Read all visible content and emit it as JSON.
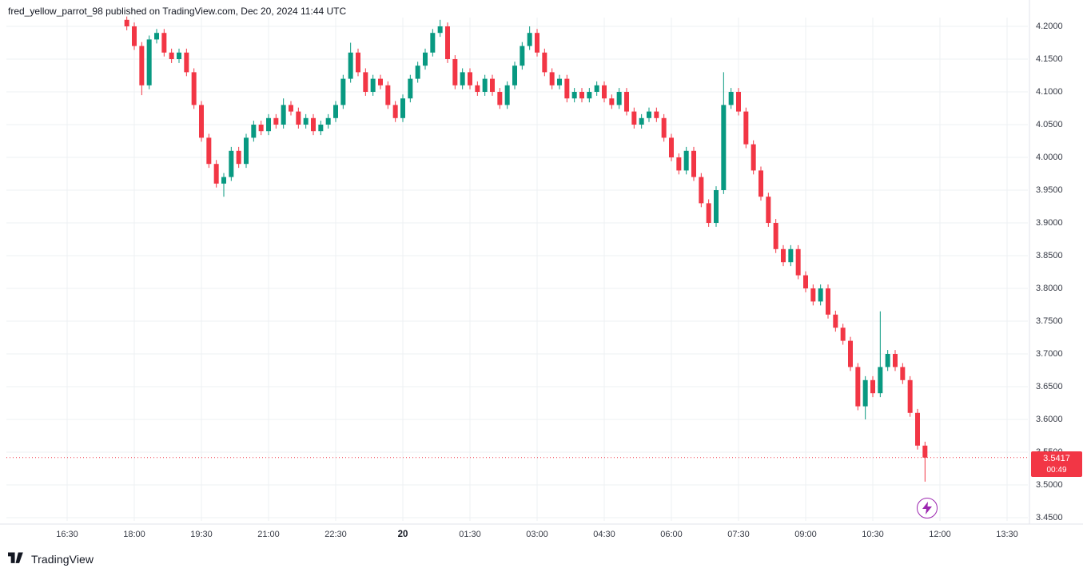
{
  "header": {
    "username": "fred_yellow_parrot_98",
    "suffix": " published on TradingView.com, Dec 20, 2024 11:44 UTC"
  },
  "footer": {
    "brand": "TradingView"
  },
  "price_label": {
    "price_text": "3.5417",
    "countdown_text": "00:49"
  },
  "colors": {
    "up": "#089981",
    "down": "#f23645",
    "grid": "#eef0f3",
    "axis_border": "#e0e3eb",
    "text": "#131722",
    "tick_text": "#363a45",
    "last_price": "#f23645",
    "marker_purple": "#9c27b0"
  },
  "chart_data": {
    "type": "candlestick",
    "timeframe_note": "intraday, Dec 19 evening to Dec 20 11:44 UTC",
    "y_range": [
      3.45,
      4.215
    ],
    "last_price": 3.5417,
    "countdown": "00:49",
    "y_ticks": [
      {
        "label": "4.2000",
        "value": 4.2
      },
      {
        "label": "4.1500",
        "value": 4.15
      },
      {
        "label": "4.1000",
        "value": 4.1
      },
      {
        "label": "4.0500",
        "value": 4.05
      },
      {
        "label": "4.0000",
        "value": 4.0
      },
      {
        "label": "3.9500",
        "value": 3.95
      },
      {
        "label": "3.9000",
        "value": 3.9
      },
      {
        "label": "3.8500",
        "value": 3.85
      },
      {
        "label": "3.8000",
        "value": 3.8
      },
      {
        "label": "3.7500",
        "value": 3.75
      },
      {
        "label": "3.7000",
        "value": 3.7
      },
      {
        "label": "3.6500",
        "value": 3.65
      },
      {
        "label": "3.6000",
        "value": 3.6
      },
      {
        "label": "3.5500",
        "value": 3.55
      },
      {
        "label": "3.5000",
        "value": 3.5
      },
      {
        "label": "3.4500",
        "value": 3.45
      }
    ],
    "x_ticks": [
      {
        "label": "16:30",
        "minutes": 0
      },
      {
        "label": "18:00",
        "minutes": 90
      },
      {
        "label": "19:30",
        "minutes": 180
      },
      {
        "label": "21:00",
        "minutes": 270
      },
      {
        "label": "22:30",
        "minutes": 360
      },
      {
        "label": "20",
        "minutes": 450,
        "bold": true
      },
      {
        "label": "01:30",
        "minutes": 540
      },
      {
        "label": "03:00",
        "minutes": 630
      },
      {
        "label": "04:30",
        "minutes": 720
      },
      {
        "label": "06:00",
        "minutes": 810
      },
      {
        "label": "07:30",
        "minutes": 900
      },
      {
        "label": "09:00",
        "minutes": 990
      },
      {
        "label": "10:30",
        "minutes": 1080
      },
      {
        "label": "12:00",
        "minutes": 1170
      },
      {
        "label": "13:30",
        "minutes": 1260
      }
    ],
    "candles": [
      [
        "17:50",
        4.21,
        4.215,
        4.194,
        4.2
      ],
      [
        "18:00",
        4.2,
        4.206,
        4.164,
        4.17
      ],
      [
        "18:10",
        4.17,
        4.176,
        4.095,
        4.11
      ],
      [
        "18:20",
        4.11,
        4.186,
        4.104,
        4.18
      ],
      [
        "18:30",
        4.18,
        4.196,
        4.174,
        4.19
      ],
      [
        "18:40",
        4.19,
        4.196,
        4.154,
        4.16
      ],
      [
        "18:50",
        4.16,
        4.166,
        4.144,
        4.15
      ],
      [
        "19:00",
        4.15,
        4.166,
        4.144,
        4.16
      ],
      [
        "19:10",
        4.16,
        4.166,
        4.124,
        4.13
      ],
      [
        "19:20",
        4.13,
        4.136,
        4.074,
        4.08
      ],
      [
        "19:30",
        4.08,
        4.086,
        4.024,
        4.03
      ],
      [
        "19:40",
        4.03,
        4.036,
        3.984,
        3.99
      ],
      [
        "19:50",
        3.99,
        3.996,
        3.954,
        3.96
      ],
      [
        "20:00",
        3.96,
        3.976,
        3.94,
        3.97
      ],
      [
        "20:10",
        3.97,
        4.016,
        3.964,
        4.01
      ],
      [
        "20:20",
        4.01,
        4.016,
        3.984,
        3.99
      ],
      [
        "20:30",
        3.99,
        4.036,
        3.984,
        4.03
      ],
      [
        "20:40",
        4.03,
        4.056,
        4.024,
        4.05
      ],
      [
        "20:50",
        4.05,
        4.056,
        4.034,
        4.04
      ],
      [
        "21:00",
        4.04,
        4.066,
        4.034,
        4.06
      ],
      [
        "21:10",
        4.06,
        4.066,
        4.044,
        4.05
      ],
      [
        "21:20",
        4.05,
        4.09,
        4.044,
        4.08
      ],
      [
        "21:30",
        4.08,
        4.086,
        4.064,
        4.07
      ],
      [
        "21:40",
        4.07,
        4.076,
        4.044,
        4.05
      ],
      [
        "21:50",
        4.05,
        4.066,
        4.044,
        4.06
      ],
      [
        "22:00",
        4.06,
        4.066,
        4.034,
        4.04
      ],
      [
        "22:10",
        4.04,
        4.056,
        4.034,
        4.05
      ],
      [
        "22:20",
        4.05,
        4.066,
        4.044,
        4.06
      ],
      [
        "22:30",
        4.06,
        4.086,
        4.054,
        4.08
      ],
      [
        "22:40",
        4.08,
        4.126,
        4.074,
        4.12
      ],
      [
        "22:50",
        4.12,
        4.175,
        4.114,
        4.16
      ],
      [
        "23:00",
        4.16,
        4.166,
        4.124,
        4.13
      ],
      [
        "23:10",
        4.13,
        4.136,
        4.094,
        4.1
      ],
      [
        "23:20",
        4.1,
        4.126,
        4.094,
        4.12
      ],
      [
        "23:30",
        4.12,
        4.126,
        4.104,
        4.11
      ],
      [
        "23:40",
        4.11,
        4.116,
        4.074,
        4.08
      ],
      [
        "23:50",
        4.08,
        4.086,
        4.054,
        4.06
      ],
      [
        "00:00",
        4.06,
        4.096,
        4.054,
        4.09
      ],
      [
        "00:10",
        4.09,
        4.126,
        4.084,
        4.12
      ],
      [
        "00:20",
        4.12,
        4.146,
        4.114,
        4.14
      ],
      [
        "00:30",
        4.14,
        4.166,
        4.134,
        4.16
      ],
      [
        "00:40",
        4.16,
        4.196,
        4.154,
        4.19
      ],
      [
        "00:50",
        4.19,
        4.21,
        4.184,
        4.2
      ],
      [
        "01:00",
        4.2,
        4.206,
        4.144,
        4.15
      ],
      [
        "01:10",
        4.15,
        4.156,
        4.104,
        4.11
      ],
      [
        "01:20",
        4.11,
        4.136,
        4.104,
        4.13
      ],
      [
        "01:30",
        4.13,
        4.136,
        4.104,
        4.11
      ],
      [
        "01:40",
        4.11,
        4.116,
        4.094,
        4.1
      ],
      [
        "01:50",
        4.1,
        4.126,
        4.094,
        4.12
      ],
      [
        "02:00",
        4.12,
        4.126,
        4.094,
        4.1
      ],
      [
        "02:10",
        4.1,
        4.106,
        4.074,
        4.08
      ],
      [
        "02:20",
        4.08,
        4.116,
        4.074,
        4.11
      ],
      [
        "02:30",
        4.11,
        4.146,
        4.104,
        4.14
      ],
      [
        "02:40",
        4.14,
        4.176,
        4.134,
        4.17
      ],
      [
        "02:50",
        4.17,
        4.2,
        4.164,
        4.19
      ],
      [
        "03:00",
        4.19,
        4.196,
        4.154,
        4.16
      ],
      [
        "03:10",
        4.16,
        4.166,
        4.124,
        4.13
      ],
      [
        "03:20",
        4.13,
        4.136,
        4.104,
        4.11
      ],
      [
        "03:30",
        4.11,
        4.126,
        4.104,
        4.12
      ],
      [
        "03:40",
        4.12,
        4.126,
        4.084,
        4.09
      ],
      [
        "03:50",
        4.09,
        4.106,
        4.084,
        4.1
      ],
      [
        "04:00",
        4.1,
        4.106,
        4.084,
        4.09
      ],
      [
        "04:10",
        4.09,
        4.106,
        4.084,
        4.1
      ],
      [
        "04:20",
        4.1,
        4.116,
        4.094,
        4.11
      ],
      [
        "04:30",
        4.11,
        4.116,
        4.084,
        4.09
      ],
      [
        "04:40",
        4.09,
        4.096,
        4.074,
        4.08
      ],
      [
        "04:50",
        4.08,
        4.106,
        4.074,
        4.1
      ],
      [
        "05:00",
        4.1,
        4.106,
        4.064,
        4.07
      ],
      [
        "05:10",
        4.07,
        4.076,
        4.044,
        4.05
      ],
      [
        "05:20",
        4.05,
        4.066,
        4.044,
        4.06
      ],
      [
        "05:30",
        4.06,
        4.076,
        4.054,
        4.07
      ],
      [
        "05:40",
        4.07,
        4.076,
        4.054,
        4.06
      ],
      [
        "05:50",
        4.06,
        4.066,
        4.024,
        4.03
      ],
      [
        "06:00",
        4.03,
        4.036,
        3.994,
        4.0
      ],
      [
        "06:10",
        4.0,
        4.006,
        3.974,
        3.98
      ],
      [
        "06:20",
        3.98,
        4.016,
        3.974,
        4.01
      ],
      [
        "06:30",
        4.01,
        4.016,
        3.964,
        3.97
      ],
      [
        "06:40",
        3.97,
        3.976,
        3.924,
        3.93
      ],
      [
        "06:50",
        3.93,
        3.936,
        3.894,
        3.9
      ],
      [
        "07:00",
        3.9,
        3.956,
        3.894,
        3.95
      ],
      [
        "07:10",
        3.95,
        4.13,
        3.944,
        4.08
      ],
      [
        "07:20",
        4.08,
        4.106,
        4.074,
        4.1
      ],
      [
        "07:30",
        4.1,
        4.106,
        4.064,
        4.07
      ],
      [
        "07:40",
        4.07,
        4.076,
        4.014,
        4.02
      ],
      [
        "07:50",
        4.02,
        4.026,
        3.974,
        3.98
      ],
      [
        "08:00",
        3.98,
        3.986,
        3.934,
        3.94
      ],
      [
        "08:10",
        3.94,
        3.946,
        3.894,
        3.9
      ],
      [
        "08:20",
        3.9,
        3.906,
        3.854,
        3.86
      ],
      [
        "08:30",
        3.86,
        3.866,
        3.834,
        3.84
      ],
      [
        "08:40",
        3.84,
        3.866,
        3.834,
        3.86
      ],
      [
        "08:50",
        3.86,
        3.866,
        3.814,
        3.82
      ],
      [
        "09:00",
        3.82,
        3.826,
        3.794,
        3.8
      ],
      [
        "09:10",
        3.8,
        3.806,
        3.774,
        3.78
      ],
      [
        "09:20",
        3.78,
        3.806,
        3.774,
        3.8
      ],
      [
        "09:30",
        3.8,
        3.806,
        3.754,
        3.76
      ],
      [
        "09:40",
        3.76,
        3.766,
        3.734,
        3.74
      ],
      [
        "09:50",
        3.74,
        3.746,
        3.714,
        3.72
      ],
      [
        "10:00",
        3.72,
        3.726,
        3.674,
        3.68
      ],
      [
        "10:10",
        3.68,
        3.686,
        3.614,
        3.62
      ],
      [
        "10:20",
        3.62,
        3.666,
        3.6,
        3.66
      ],
      [
        "10:30",
        3.66,
        3.666,
        3.634,
        3.64
      ],
      [
        "10:40",
        3.64,
        3.765,
        3.634,
        3.68
      ],
      [
        "10:50",
        3.68,
        3.706,
        3.674,
        3.7
      ],
      [
        "11:00",
        3.7,
        3.706,
        3.674,
        3.68
      ],
      [
        "11:10",
        3.68,
        3.686,
        3.654,
        3.66
      ],
      [
        "11:20",
        3.66,
        3.666,
        3.604,
        3.61
      ],
      [
        "11:30",
        3.61,
        3.616,
        3.554,
        3.56
      ],
      [
        "11:40",
        3.56,
        3.566,
        3.505,
        3.5417
      ]
    ]
  }
}
